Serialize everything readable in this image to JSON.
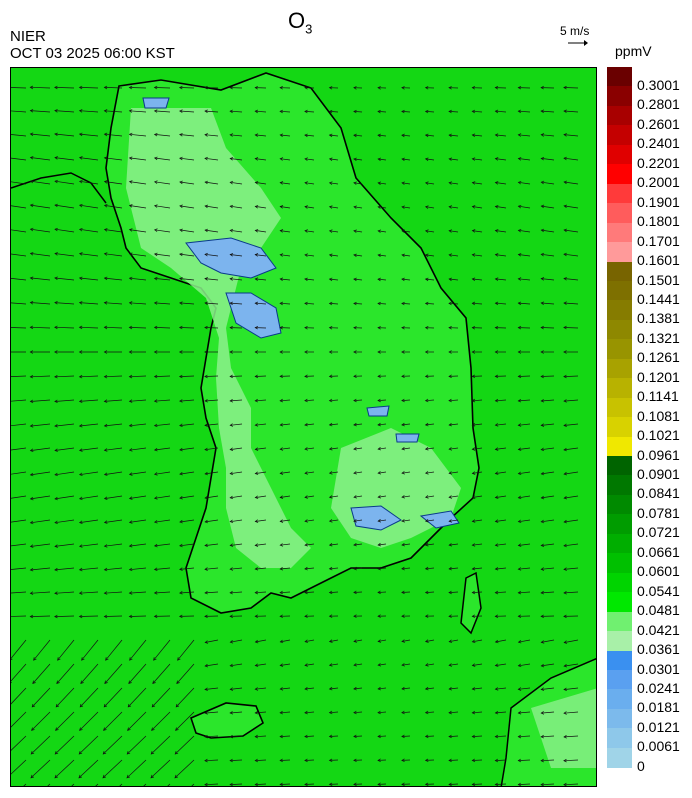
{
  "header": {
    "title_main": "O",
    "title_sub": "3",
    "agency": "NIER",
    "datetime": "OCT 03 2025 06:00 KST",
    "vector_scale_label": "5 m/s",
    "unit": "ppmV"
  },
  "legend": {
    "labels": [
      "0.3001",
      "0.2801",
      "0.2601",
      "0.2401",
      "0.2201",
      "0.2001",
      "0.1901",
      "0.1801",
      "0.1701",
      "0.1601",
      "0.1501",
      "0.1441",
      "0.1381",
      "0.1321",
      "0.1261",
      "0.1201",
      "0.1141",
      "0.1081",
      "0.1021",
      "0.0961",
      "0.0901",
      "0.0841",
      "0.0781",
      "0.0721",
      "0.0661",
      "0.0601",
      "0.0541",
      "0.0481",
      "0.0421",
      "0.0361",
      "0.0301",
      "0.0241",
      "0.0181",
      "0.0121",
      "0.0061",
      "0"
    ],
    "colors": [
      "#6a0000",
      "#8a0000",
      "#a80000",
      "#c40000",
      "#e00000",
      "#ff0000",
      "#ff3a3a",
      "#ff5c5c",
      "#ff7a7a",
      "#ff9a9a",
      "#786400",
      "#7e7000",
      "#867c00",
      "#8e8800",
      "#989400",
      "#a8a200",
      "#b8b200",
      "#c8c200",
      "#d8d200",
      "#f0e800",
      "#006400",
      "#007800",
      "#008a00",
      "#009c00",
      "#00ae00",
      "#00c000",
      "#00d400",
      "#00e800",
      "#70f070",
      "#a8f0a8",
      "#3a90f0",
      "#5aa0f0",
      "#6aaeee",
      "#7cbaec",
      "#8ec8ea",
      "#a0d4e8"
    ]
  },
  "map": {
    "dominant_level": "0.0481",
    "features": [
      "wind-vectors",
      "coastlines",
      "province-boundaries"
    ]
  }
}
